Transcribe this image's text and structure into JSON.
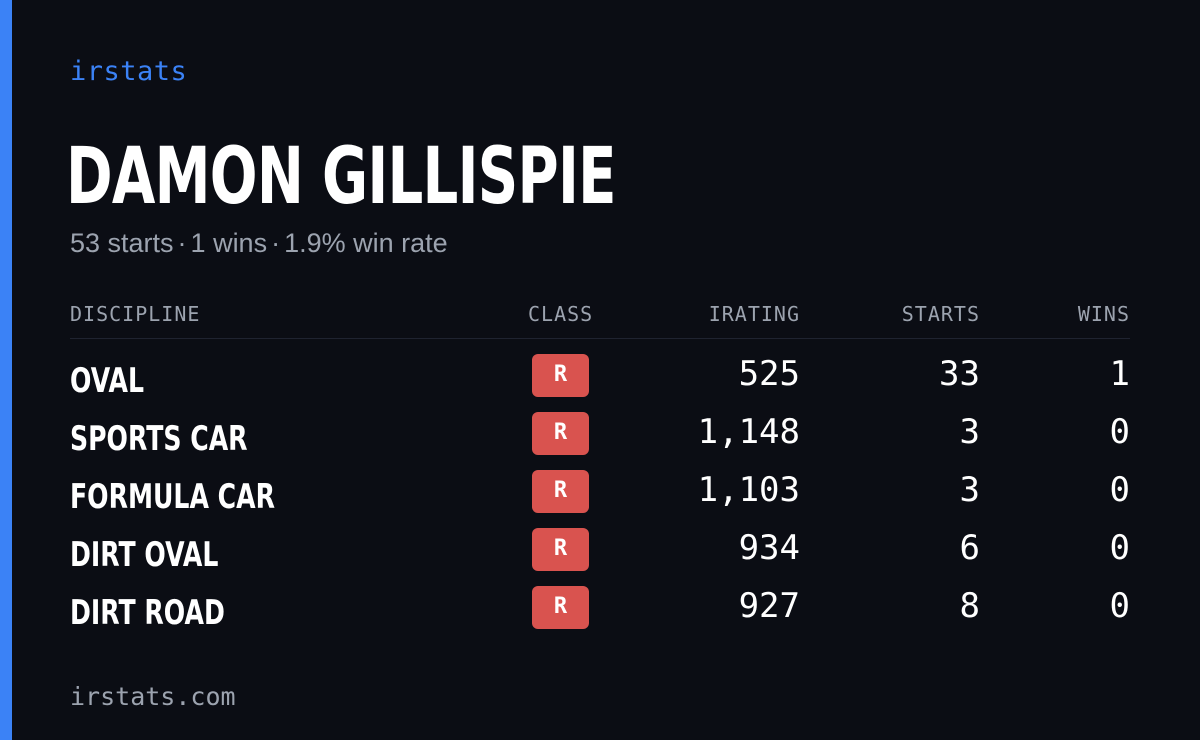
{
  "brand": "irstats",
  "player": {
    "name": "DAMON GILLISPIE",
    "starts_text": "53 starts",
    "wins_text": "1 wins",
    "winrate_text": "1.9% win rate",
    "separator": "·"
  },
  "table": {
    "headers": {
      "discipline": "DISCIPLINE",
      "class": "CLASS",
      "irating": "IRATING",
      "starts": "STARTS",
      "wins": "WINS"
    },
    "rows": [
      {
        "discipline": "OVAL",
        "class": "R",
        "irating": "525",
        "starts": "33",
        "wins": "1"
      },
      {
        "discipline": "SPORTS CAR",
        "class": "R",
        "irating": "1,148",
        "starts": "3",
        "wins": "0"
      },
      {
        "discipline": "FORMULA CAR",
        "class": "R",
        "irating": "1,103",
        "starts": "3",
        "wins": "0"
      },
      {
        "discipline": "DIRT OVAL",
        "class": "R",
        "irating": "934",
        "starts": "6",
        "wins": "0"
      },
      {
        "discipline": "DIRT ROAD",
        "class": "R",
        "irating": "927",
        "starts": "8",
        "wins": "0"
      }
    ]
  },
  "footer": "irstats.com",
  "colors": {
    "background": "#0b0d14",
    "accent": "#3b82f6",
    "class_r": "#d9534f",
    "muted": "#9ca3af"
  }
}
